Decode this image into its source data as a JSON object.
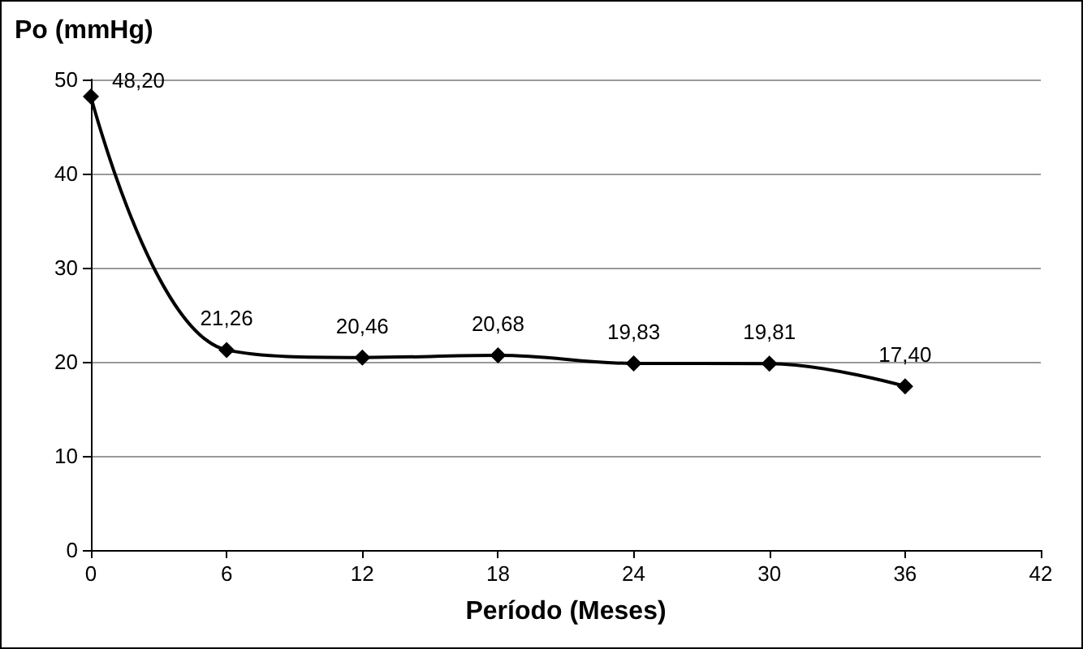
{
  "chart_data": {
    "type": "line",
    "ylabel": "Po (mmHg)",
    "xlabel": "Período (Meses)",
    "x": [
      0,
      6,
      12,
      18,
      24,
      30,
      36
    ],
    "series": [
      {
        "color": "#000000",
        "values": [
          48.2,
          21.26,
          20.46,
          20.68,
          19.83,
          19.81,
          17.4
        ],
        "value_labels": [
          "48,20",
          "21,26",
          "20,46",
          "20,68",
          "19,83",
          "19,81",
          "17,40"
        ]
      }
    ],
    "xlim": [
      0,
      42
    ],
    "xticks": [
      0,
      6,
      12,
      18,
      24,
      30,
      36,
      42
    ],
    "ylim": [
      0,
      50
    ],
    "yticks": [
      0,
      10,
      20,
      30,
      40,
      50
    ],
    "grid": "y",
    "marker": "diamond",
    "line_style": "solid"
  }
}
